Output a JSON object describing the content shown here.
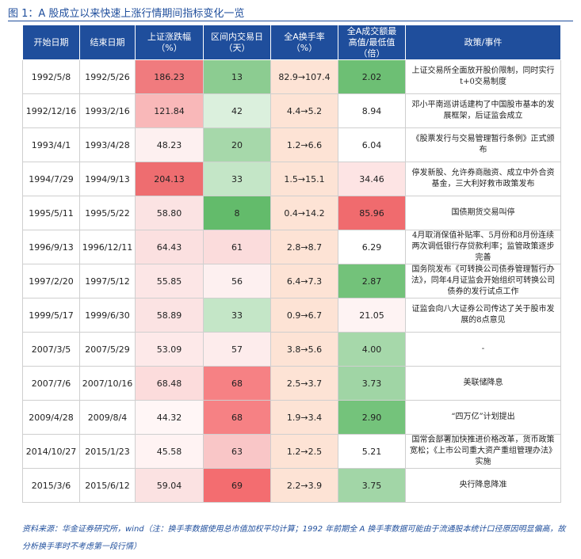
{
  "figure": {
    "title": "图 1：A 股成立以来快速上涨行情期间指标变化一览"
  },
  "table": {
    "headers": [
      {
        "line1": "开始日期",
        "line2": ""
      },
      {
        "line1": "结束日期",
        "line2": ""
      },
      {
        "line1": "上证涨跌幅",
        "line2": "（%）"
      },
      {
        "line1": "区间内交易日",
        "line2": "（天）"
      },
      {
        "line1": "全A换手率",
        "line2": "（%）"
      },
      {
        "line1": "全A成交额最",
        "line2": "高值/最低值",
        "line3": "（倍）"
      },
      {
        "line1": "政策/事件",
        "line2": ""
      }
    ],
    "rows": [
      {
        "start": "1992/5/8",
        "end": "1992/5/26",
        "change": "186.23",
        "days": "13",
        "turnover": "82.9→107.4",
        "ratio": "2.02",
        "policy": "上证交易所全面放开股价限制，同时实行t+0交易制度",
        "colors": {
          "change": "#f07b7e",
          "days": "#8ccc91",
          "turnover": "#fde3d5",
          "ratio": "#6dbf74"
        }
      },
      {
        "start": "1992/12/16",
        "end": "1993/2/16",
        "change": "121.84",
        "days": "42",
        "turnover": "4.4→5.2",
        "ratio": "8.94",
        "policy": "邓小平南巡讲话建构了中国股市基本的发展框架，后证监会成立",
        "colors": {
          "change": "#f9b8b9",
          "days": "#dbf0dd",
          "turnover": "#fde3d5",
          "ratio": "#ffffff"
        }
      },
      {
        "start": "1993/4/1",
        "end": "1993/4/28",
        "change": "48.23",
        "days": "20",
        "turnover": "1.2→6.6",
        "ratio": "6.04",
        "policy": "《股票发行与交易管理暂行条例》正式颁布",
        "colors": {
          "change": "#fdf0f0",
          "days": "#a6d8aa",
          "turnover": "#fde3d5",
          "ratio": "#ffffff"
        }
      },
      {
        "start": "1994/7/29",
        "end": "1994/9/13",
        "change": "204.13",
        "days": "33",
        "turnover": "1.5→15.1",
        "ratio": "34.46",
        "policy": "停发新股、允许券商融资、成立中外合资基金，三大利好救市政策发布",
        "colors": {
          "change": "#ee6d70",
          "days": "#c4e6c7",
          "turnover": "#fde3d5",
          "ratio": "#fde4e4"
        }
      },
      {
        "start": "1995/5/11",
        "end": "1995/5/22",
        "change": "58.80",
        "days": "8",
        "turnover": "0.4→14.2",
        "ratio": "85.96",
        "policy": "国债期货交易叫停",
        "colors": {
          "change": "#fbe3e3",
          "days": "#63bb6b",
          "turnover": "#fde3d5",
          "ratio": "#f06b6e"
        }
      },
      {
        "start": "1996/9/13",
        "end": "1996/12/11",
        "change": "64.43",
        "days": "61",
        "turnover": "2.8→8.7",
        "ratio": "6.29",
        "policy": "4月取消保值补贴率、5月份和8月份连续两次调低银行存贷款利率；监管政策逐步完善",
        "colors": {
          "change": "#fbe0e0",
          "days": "#fbdcdc",
          "turnover": "#fde3d5",
          "ratio": "#ffffff"
        }
      },
      {
        "start": "1997/2/20",
        "end": "1997/5/12",
        "change": "55.85",
        "days": "56",
        "turnover": "6.4→7.3",
        "ratio": "2.87",
        "policy": "国务院发布《可转换公司债券管理暂行办法》，同年4月证监会开始组织可转换公司债券的发行试点工作",
        "colors": {
          "change": "#fce6e6",
          "days": "#fdf0f0",
          "turnover": "#fde3d5",
          "ratio": "#73c27a"
        }
      },
      {
        "start": "1999/5/17",
        "end": "1999/6/30",
        "change": "58.89",
        "days": "33",
        "turnover": "0.9→6.7",
        "ratio": "21.05",
        "policy": "证监会向八大证券公司传达了关于股市发展的8点意见",
        "colors": {
          "change": "#fbe3e3",
          "days": "#c4e6c7",
          "turnover": "#fde3d5",
          "ratio": "#fef3f3"
        }
      },
      {
        "start": "2007/3/5",
        "end": "2007/5/29",
        "change": "53.09",
        "days": "57",
        "turnover": "3.8→5.6",
        "ratio": "4.00",
        "policy": "-",
        "colors": {
          "change": "#fde9e9",
          "days": "#fdecec",
          "turnover": "#fde3d5",
          "ratio": "#a6d8aa"
        }
      },
      {
        "start": "2007/7/6",
        "end": "2007/10/16",
        "change": "68.48",
        "days": "68",
        "turnover": "2.5→3.7",
        "ratio": "3.73",
        "policy": "美联储降息",
        "colors": {
          "change": "#fcdcdc",
          "days": "#f68184",
          "turnover": "#fde3d5",
          "ratio": "#a0d5a5"
        }
      },
      {
        "start": "2009/4/28",
        "end": "2009/8/4",
        "change": "44.32",
        "days": "68",
        "turnover": "1.9→3.4",
        "ratio": "2.90",
        "policy": "“四万亿”计划提出",
        "colors": {
          "change": "#fff6f6",
          "days": "#f68184",
          "turnover": "#fde3d5",
          "ratio": "#74c37b"
        }
      },
      {
        "start": "2014/10/27",
        "end": "2015/1/23",
        "change": "45.58",
        "days": "63",
        "turnover": "1.2→2.5",
        "ratio": "5.21",
        "policy": "国常会部署加快推进价格改革，货币政策宽松；《上市公司重大资产重组管理办法》实施",
        "colors": {
          "change": "#fff3f3",
          "days": "#f9c6c7",
          "turnover": "#fde3d5",
          "ratio": "#ffffff"
        }
      },
      {
        "start": "2015/3/6",
        "end": "2015/6/12",
        "change": "59.04",
        "days": "69",
        "turnover": "2.2→3.9",
        "ratio": "3.75",
        "policy": "央行降息降准",
        "colors": {
          "change": "#fbe2e2",
          "days": "#f36d70",
          "turnover": "#fde3d5",
          "ratio": "#a2d6a7"
        }
      }
    ]
  },
  "source": {
    "text": "资料来源：华金证券研究所，wind（注：换手率数据使用总市值加权平均计算；1992 年前期全 A 换手率数据可能由于流通股本统计口径原因明显偏高，故分析换手率时不考虑第一段行情）"
  }
}
